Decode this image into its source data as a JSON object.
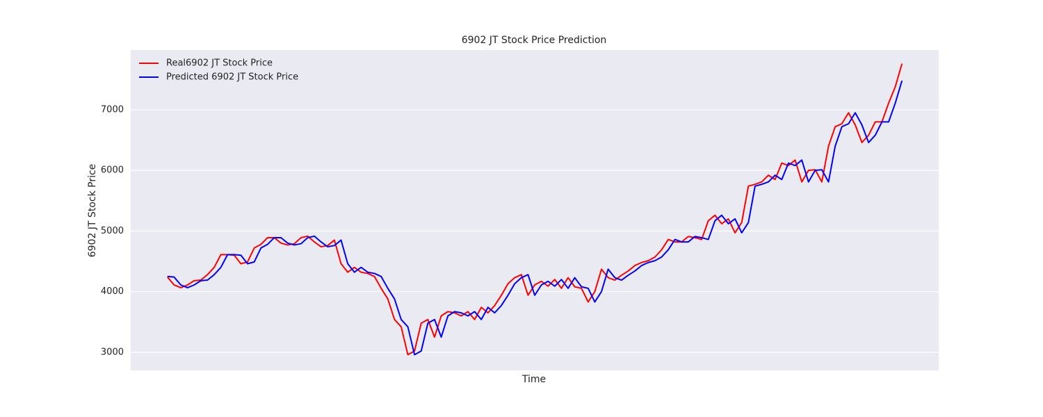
{
  "chart_data": {
    "type": "line",
    "title": "6902 JT Stock Price Prediction",
    "x_label": "Time",
    "y_label": "6902 JT Stock Price",
    "ylim": [
      2700,
      7985
    ],
    "yticks": [
      3000,
      4000,
      5000,
      6000,
      7000
    ],
    "grid": true,
    "legend": "upper left",
    "series": [
      {
        "name": "Real6902 JT Stock Price",
        "color": "#ff0000",
        "values": [
          4240,
          4110,
          4065,
          4110,
          4180,
          4190,
          4280,
          4400,
          4610,
          4610,
          4600,
          4460,
          4490,
          4720,
          4780,
          4890,
          4890,
          4800,
          4770,
          4790,
          4890,
          4915,
          4820,
          4740,
          4760,
          4850,
          4460,
          4320,
          4400,
          4320,
          4300,
          4250,
          4055,
          3880,
          3540,
          3420,
          2960,
          3020,
          3480,
          3540,
          3250,
          3600,
          3670,
          3650,
          3600,
          3670,
          3540,
          3740,
          3650,
          3770,
          3940,
          4130,
          4230,
          4280,
          3940,
          4110,
          4170,
          4090,
          4200,
          4055,
          4230,
          4080,
          4055,
          3830,
          4000,
          4370,
          4230,
          4190,
          4270,
          4340,
          4430,
          4480,
          4510,
          4570,
          4690,
          4860,
          4820,
          4820,
          4910,
          4890,
          4860,
          5170,
          5260,
          5120,
          5200,
          4970,
          5140,
          5740,
          5770,
          5810,
          5920,
          5850,
          6120,
          6080,
          6170,
          5810,
          6000,
          6010,
          5810,
          6400,
          6720,
          6770,
          6950,
          6750,
          6460,
          6580,
          6800,
          6800,
          7110,
          7380,
          7760
        ]
      },
      {
        "name": "Predicted 6902 JT Stock Price",
        "color": "#0000ff",
        "values": [
          4250,
          4240,
          4110,
          4065,
          4110,
          4180,
          4190,
          4280,
          4400,
          4610,
          4610,
          4600,
          4460,
          4490,
          4720,
          4780,
          4890,
          4890,
          4800,
          4770,
          4790,
          4890,
          4915,
          4820,
          4740,
          4760,
          4850,
          4460,
          4320,
          4400,
          4320,
          4300,
          4250,
          4055,
          3880,
          3540,
          3420,
          2960,
          3020,
          3480,
          3540,
          3250,
          3600,
          3670,
          3650,
          3600,
          3670,
          3540,
          3740,
          3650,
          3770,
          3940,
          4130,
          4230,
          4280,
          3940,
          4110,
          4170,
          4090,
          4200,
          4055,
          4230,
          4080,
          4055,
          3830,
          4000,
          4370,
          4230,
          4190,
          4270,
          4340,
          4430,
          4480,
          4510,
          4570,
          4690,
          4860,
          4820,
          4820,
          4910,
          4890,
          4860,
          5170,
          5260,
          5120,
          5200,
          4970,
          5140,
          5740,
          5770,
          5810,
          5920,
          5850,
          6120,
          6080,
          6170,
          5810,
          6000,
          6010,
          5810,
          6400,
          6720,
          6770,
          6950,
          6750,
          6460,
          6580,
          6800,
          6800,
          7110,
          7480
        ]
      }
    ]
  }
}
